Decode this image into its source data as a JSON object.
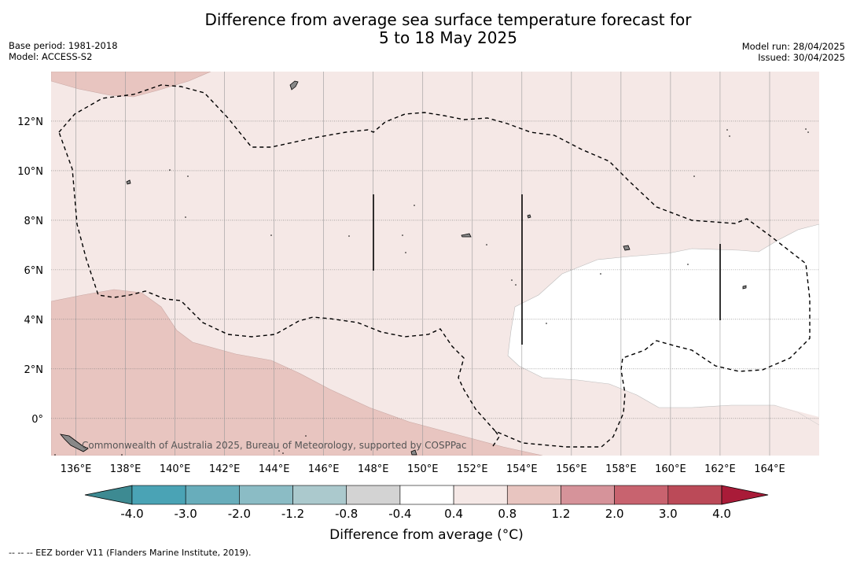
{
  "title": {
    "line1": "Difference from average sea surface temperature forecast for",
    "line2": "5 to 18 May 2025"
  },
  "meta_left": {
    "base_period": "Base period: 1981-2018",
    "model": "Model: ACCESS-S2"
  },
  "meta_right": {
    "model_run": "Model run: 28/04/2025",
    "issued": "Issued: 30/04/2025"
  },
  "map": {
    "lon_range": [
      135,
      166
    ],
    "lat_range": [
      -1.5,
      14
    ],
    "lat_ticks": [
      {
        "value": 12,
        "label": "12°N"
      },
      {
        "value": 10,
        "label": "10°N"
      },
      {
        "value": 8,
        "label": "8°N"
      },
      {
        "value": 6,
        "label": "6°N"
      },
      {
        "value": 4,
        "label": "4°N"
      },
      {
        "value": 2,
        "label": "2°N"
      },
      {
        "value": 0,
        "label": "0°"
      }
    ],
    "lon_ticks": [
      {
        "value": 136,
        "label": "136°E"
      },
      {
        "value": 138,
        "label": "138°E"
      },
      {
        "value": 140,
        "label": "140°E"
      },
      {
        "value": 142,
        "label": "142°E"
      },
      {
        "value": 144,
        "label": "144°E"
      },
      {
        "value": 146,
        "label": "146°E"
      },
      {
        "value": 148,
        "label": "148°E"
      },
      {
        "value": 150,
        "label": "150°E"
      },
      {
        "value": 152,
        "label": "152°E"
      },
      {
        "value": 154,
        "label": "154°E"
      },
      {
        "value": 156,
        "label": "156°E"
      },
      {
        "value": 158,
        "label": "158°E"
      },
      {
        "value": 160,
        "label": "160°E"
      },
      {
        "value": 162,
        "label": "162°E"
      },
      {
        "value": 164,
        "label": "164°E"
      }
    ],
    "copyright": "Commonwealth of Australia 2025, Bureau of Meteorology, supported by COSPPac",
    "colors": {
      "band_0.4_0.8": "#f5e8e6",
      "band_0.8_1.2": "#e8c5c0",
      "band_-0.4_0.4": "#ffffff",
      "land": "#888888"
    }
  },
  "colorbar": {
    "ticks": [
      "-4.0",
      "-3.0",
      "-2.0",
      "-1.2",
      "-0.8",
      "-0.4",
      "0.4",
      "0.8",
      "1.2",
      "2.0",
      "3.0",
      "4.0"
    ],
    "colors": [
      "#4aa3b5",
      "#68adbb",
      "#8bbcc5",
      "#abc9cd",
      "#d3d3d3",
      "#ffffff",
      "#f5e8e6",
      "#e8c5c0",
      "#d6939a",
      "#c8636f",
      "#bb4a58"
    ],
    "low_extend_color": "#3d8a92",
    "high_extend_color": "#a91b38",
    "label": "Difference from average (°C)"
  },
  "footnote": "--  --  -- EEZ border V11 (Flanders Marine Institute, 2019)."
}
